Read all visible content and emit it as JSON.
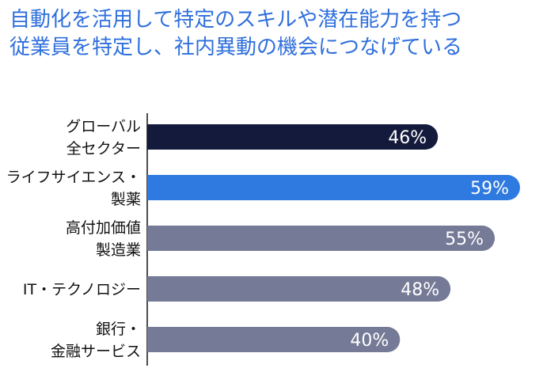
{
  "chart_data": {
    "type": "bar",
    "orientation": "horizontal",
    "title_lines": [
      "自動化を活用して特定のスキルや潜在能力を持つ",
      "従業員を特定し、社内異動の機会につなげている"
    ],
    "categories": [
      [
        "グローバル",
        "全セクター"
      ],
      [
        "ライフサイエンス・",
        "製薬"
      ],
      [
        "高付加価値",
        "製造業"
      ],
      [
        "IT・テクノロジー"
      ],
      [
        "銀行・",
        "金融サービス"
      ]
    ],
    "values": [
      46,
      59,
      55,
      48,
      40
    ],
    "value_labels": [
      "46%",
      "59%",
      "55%",
      "48%",
      "40%"
    ],
    "xlim": [
      0,
      100
    ],
    "legend": "none",
    "grid": false,
    "colors": {
      "title": "#2f6fdc",
      "bars": [
        "#141a3c",
        "#2f7ae0",
        "#757a96",
        "#757a96",
        "#757a96"
      ],
      "axis": "#111111",
      "value_text": "#ffffff"
    }
  }
}
